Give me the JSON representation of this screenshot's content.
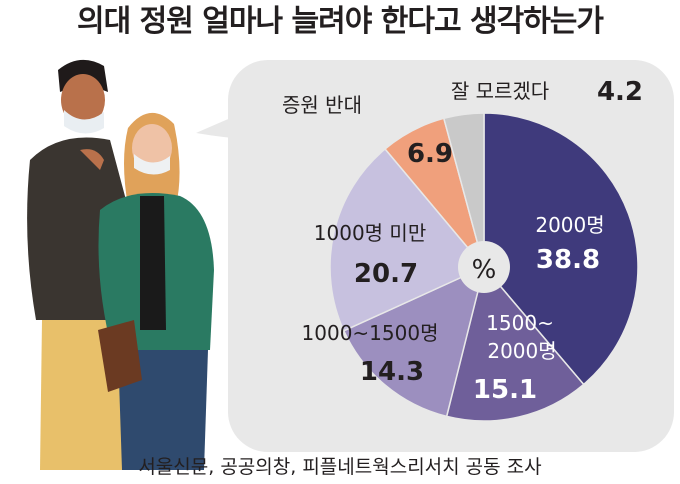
{
  "title": "의대 정원 얼마나 늘려야 한다고 생각하는가",
  "source": "서울신문, 공공의창, 피플네트웍스리서치 공동 조사",
  "chart_data": {
    "type": "pie",
    "unit_label": "%",
    "donut": true,
    "slices": [
      {
        "label": "2000명",
        "value": 38.8,
        "color": "#3f3a7c"
      },
      {
        "label": "1500~ 2000명",
        "value": 15.1,
        "color": "#6f5f9a"
      },
      {
        "label": "1000~1500명",
        "value": 14.3,
        "color": "#9c8fbf"
      },
      {
        "label": "1000명 미만",
        "value": 20.7,
        "color": "#c7c1df"
      },
      {
        "label": "증원 반대",
        "value": 6.9,
        "color": "#f0a07c"
      },
      {
        "label": "잘 모르겠다",
        "value": 4.2,
        "color": "#c9c9c9"
      }
    ]
  }
}
